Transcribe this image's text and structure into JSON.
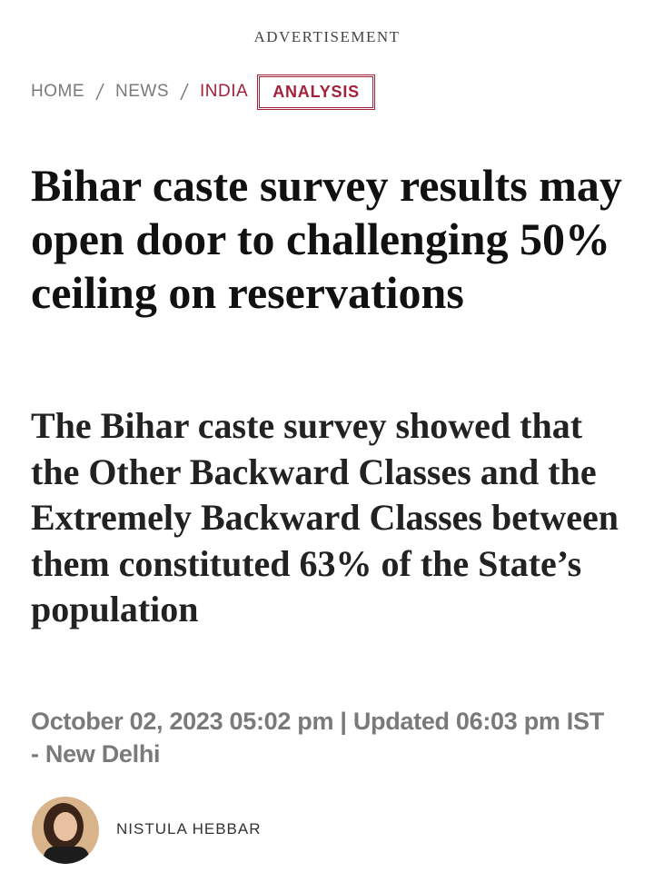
{
  "advertisement": "ADVERTISEMENT",
  "breadcrumb": {
    "items": [
      "HOME",
      "NEWS",
      "INDIA"
    ],
    "tag": "ANALYSIS"
  },
  "article": {
    "headline": "Bihar caste survey results may open door to challenging 50% ceiling on reservations",
    "standfirst": "The Bihar caste survey showed that the Other Backward Classes and the Extremely Backward Classes between them constituted 63% of the State’s population",
    "dateline": "October 02, 2023 05:02 pm | Updated 06:03 pm IST - New Delhi",
    "author": "NISTULA HEBBAR"
  }
}
